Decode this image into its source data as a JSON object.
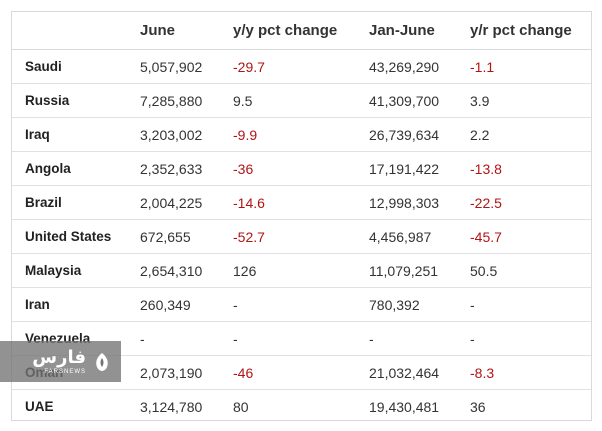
{
  "table": {
    "headers": [
      "",
      "June",
      "y/y pct change",
      "Jan-June",
      "y/r pct change"
    ],
    "rows": [
      {
        "country": "Saudi",
        "june": "5,057,902",
        "yy": "-29.7",
        "jan_june": "43,269,290",
        "yr": "-1.1",
        "yy_neg": true,
        "yr_neg": true
      },
      {
        "country": "Russia",
        "june": "7,285,880",
        "yy": "9.5",
        "jan_june": "41,309,700",
        "yr": "3.9",
        "yy_neg": false,
        "yr_neg": false
      },
      {
        "country": "Iraq",
        "june": "3,203,002",
        "yy": "-9.9",
        "jan_june": "26,739,634",
        "yr": "2.2",
        "yy_neg": true,
        "yr_neg": false
      },
      {
        "country": "Angola",
        "june": "2,352,633",
        "yy": "-36",
        "jan_june": "17,191,422",
        "yr": "-13.8",
        "yy_neg": true,
        "yr_neg": true
      },
      {
        "country": "Brazil",
        "june": "2,004,225",
        "yy": "-14.6",
        "jan_june": "12,998,303",
        "yr": "-22.5",
        "yy_neg": true,
        "yr_neg": true
      },
      {
        "country": "United States",
        "june": "672,655",
        "yy": "-52.7",
        "jan_june": "4,456,987",
        "yr": "-45.7",
        "yy_neg": true,
        "yr_neg": true
      },
      {
        "country": "Malaysia",
        "june": "2,654,310",
        "yy": "126",
        "jan_june": "11,079,251",
        "yr": "50.5",
        "yy_neg": false,
        "yr_neg": false
      },
      {
        "country": "Iran",
        "june": "260,349",
        "yy": "-",
        "jan_june": "780,392",
        "yr": "-",
        "yy_neg": false,
        "yr_neg": false
      },
      {
        "country": "Venezuela",
        "june": "-",
        "yy": "-",
        "jan_june": "-",
        "yr": "-",
        "yy_neg": false,
        "yr_neg": false
      },
      {
        "country": "Oman",
        "june": "2,073,190",
        "yy": "-46",
        "jan_june": "21,032,464",
        "yr": "-8.3",
        "yy_neg": true,
        "yr_neg": true
      },
      {
        "country": "UAE",
        "june": "3,124,780",
        "yy": "80",
        "jan_june": "19,430,481",
        "yr": "36",
        "yy_neg": false,
        "yr_neg": false
      }
    ]
  },
  "colors": {
    "negative": "#b01515",
    "text": "#333333",
    "border": "#d9d9d9"
  },
  "watermark": {
    "main": "فارس",
    "sub": "FARSNEWS",
    "icon": "fars-logo-icon"
  }
}
